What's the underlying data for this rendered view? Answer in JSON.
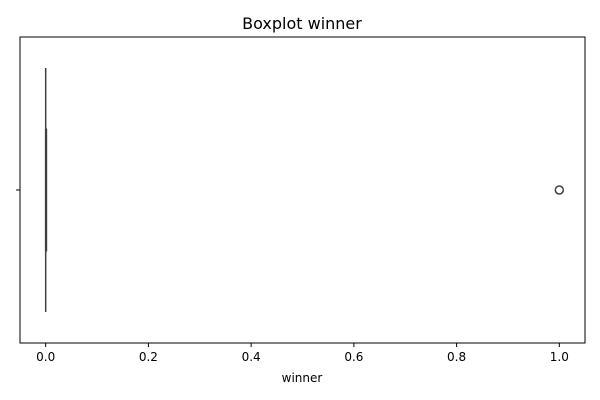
{
  "chart_data": {
    "type": "boxplot",
    "title": "Boxplot winner",
    "xlabel": "winner",
    "ylabel": "",
    "orientation": "horizontal",
    "xlim": [
      -0.05,
      1.05
    ],
    "xticks": [
      0.0,
      0.2,
      0.4,
      0.6,
      0.8,
      1.0
    ],
    "xtick_labels": [
      "0.0",
      "0.2",
      "0.4",
      "0.6",
      "0.8",
      "1.0"
    ],
    "ytick_labels": [
      ""
    ],
    "grid": false,
    "series": [
      {
        "variable": "winner",
        "min": 0.0,
        "q1": 0.0,
        "median": 0.0,
        "q3": 0.0,
        "max": 0.0,
        "outliers": [
          1.0
        ],
        "color": "#4c72b0",
        "line_color": "#3f3f3f"
      }
    ]
  }
}
